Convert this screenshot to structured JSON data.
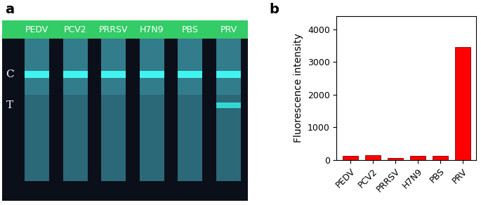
{
  "panel_labels": [
    "a",
    "b"
  ],
  "strips": {
    "labels": [
      "PEDV",
      "PCV2",
      "PRRSV",
      "H7N9",
      "PBS",
      "PRV"
    ],
    "line_labels": [
      "C",
      "T"
    ],
    "test_line": [
      false,
      false,
      false,
      false,
      false,
      true
    ]
  },
  "chart_data": {
    "type": "bar",
    "categories": [
      "PEDV",
      "PCV2",
      "PRRSV",
      "H7N9",
      "PBS",
      "PRV"
    ],
    "values": [
      130,
      150,
      70,
      130,
      120,
      3450
    ],
    "color": "#ff0000",
    "y_label": "Fluorescence intensity",
    "ylim": [
      0,
      4400
    ],
    "yticks": [
      0,
      1000,
      2000,
      3000,
      4000
    ],
    "grid": false
  }
}
